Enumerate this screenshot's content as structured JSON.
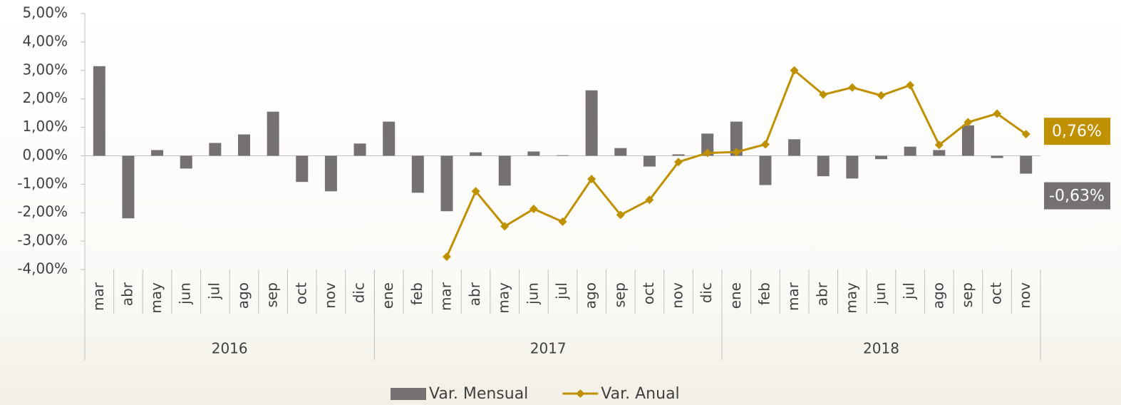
{
  "chart_data": {
    "type": "bar-line",
    "groups": [
      {
        "label": "2016",
        "categories": [
          "mar",
          "abr",
          "may",
          "jun",
          "jul",
          "ago",
          "sep",
          "oct",
          "nov",
          "dic"
        ]
      },
      {
        "label": "2017",
        "categories": [
          "ene",
          "feb",
          "mar",
          "abr",
          "may",
          "jun",
          "jul",
          "ago",
          "sep",
          "oct",
          "nov",
          "dic"
        ]
      },
      {
        "label": "2018",
        "categories": [
          "ene",
          "feb",
          "mar",
          "abr",
          "may",
          "jun",
          "jul",
          "ago",
          "sep",
          "oct",
          "nov"
        ]
      }
    ],
    "series": [
      {
        "name": "Var. Mensual",
        "type": "bar",
        "color": "#767171",
        "values": [
          3.15,
          -2.2,
          0.2,
          -0.45,
          0.45,
          0.75,
          1.55,
          -0.92,
          -1.25,
          0.43,
          1.2,
          -1.3,
          -1.95,
          0.12,
          -1.05,
          0.15,
          0.02,
          2.3,
          0.27,
          -0.38,
          0.05,
          0.78,
          1.2,
          -1.03,
          0.58,
          -0.72,
          -0.8,
          -0.12,
          0.32,
          0.2,
          1.07,
          -0.08,
          -0.63
        ],
        "value_labels": [
          null,
          null,
          null,
          null,
          null,
          null,
          null,
          null,
          null,
          null,
          null,
          null,
          null,
          null,
          null,
          null,
          null,
          null,
          null,
          null,
          null,
          null,
          null,
          null,
          null,
          null,
          null,
          null,
          null,
          null,
          null,
          null,
          "-0,63%"
        ]
      },
      {
        "name": "Var. Anual",
        "type": "line",
        "color": "#bf9000",
        "values": [
          null,
          null,
          null,
          null,
          null,
          null,
          null,
          null,
          null,
          null,
          null,
          null,
          -3.55,
          -1.25,
          -2.48,
          -1.87,
          -2.32,
          -0.82,
          -2.08,
          -1.55,
          -0.22,
          0.1,
          0.13,
          0.4,
          3.0,
          2.15,
          2.4,
          2.12,
          2.48,
          0.38,
          1.18,
          1.48,
          0.76
        ],
        "value_labels": [
          null,
          null,
          null,
          null,
          null,
          null,
          null,
          null,
          null,
          null,
          null,
          null,
          null,
          null,
          null,
          null,
          null,
          null,
          null,
          null,
          null,
          null,
          null,
          null,
          null,
          null,
          null,
          null,
          null,
          null,
          null,
          null,
          "0,76%"
        ]
      }
    ],
    "ylim": [
      -4,
      5
    ],
    "yticks": [
      {
        "value": 5,
        "label": "5,00%"
      },
      {
        "value": 4,
        "label": "4,00%"
      },
      {
        "value": 3,
        "label": "3,00%"
      },
      {
        "value": 2,
        "label": "2,00%"
      },
      {
        "value": 1,
        "label": "1,00%"
      },
      {
        "value": 0,
        "label": "0,00%"
      },
      {
        "value": -1,
        "label": "-1,00%"
      },
      {
        "value": -2,
        "label": "-2,00%"
      },
      {
        "value": -3,
        "label": "-3,00%"
      },
      {
        "value": -4,
        "label": "-4,00%"
      }
    ],
    "legend": "bottom"
  }
}
